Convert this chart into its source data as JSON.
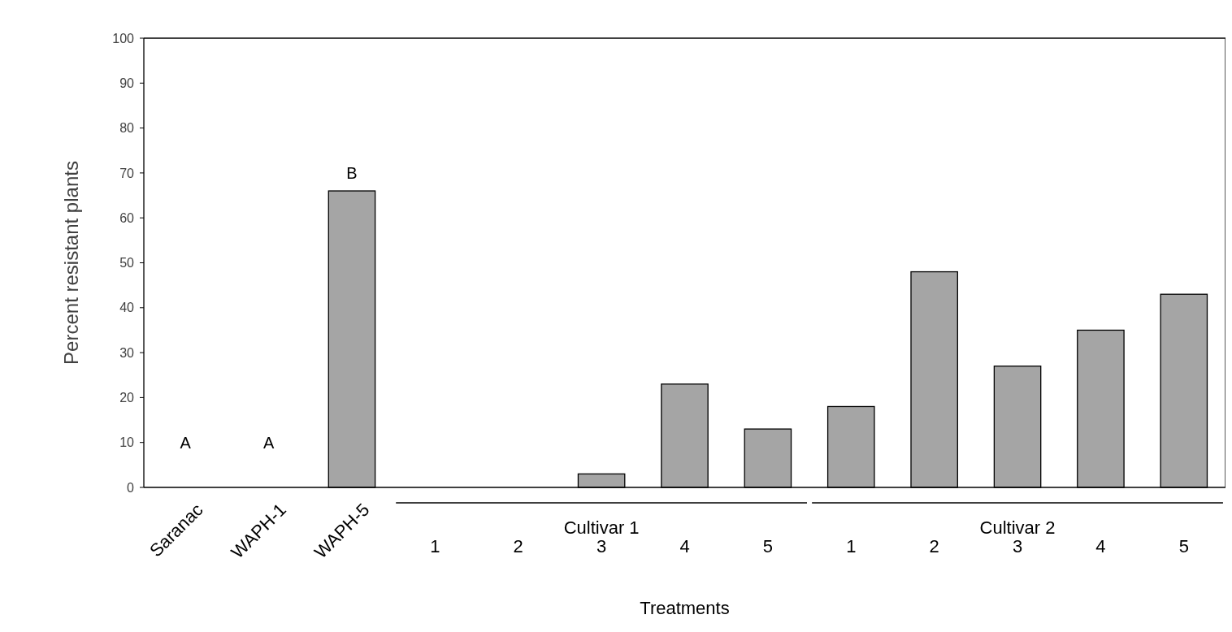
{
  "chart_data": {
    "type": "bar",
    "xlabel": "Treatments",
    "ylabel": "Percent resistant plants",
    "categories": [
      "Saranac",
      "WAPH-1",
      "WAPH-5",
      "1",
      "2",
      "3",
      "4",
      "5",
      "1",
      "2",
      "3",
      "4",
      "5"
    ],
    "values": [
      0,
      0,
      66,
      0,
      0,
      3,
      23,
      13,
      18,
      48,
      27,
      35,
      43
    ],
    "value_labels": [
      "A",
      "A",
      "B",
      null,
      null,
      null,
      null,
      null,
      null,
      null,
      null,
      null,
      null
    ],
    "color": "#a5a5a5",
    "ylim": [
      0,
      100
    ],
    "yticks": [
      0,
      10,
      20,
      30,
      40,
      50,
      60,
      70,
      80,
      90,
      100
    ],
    "grid": false,
    "annotations": [
      "Cultivar 1",
      "Cultivar 2"
    ]
  }
}
